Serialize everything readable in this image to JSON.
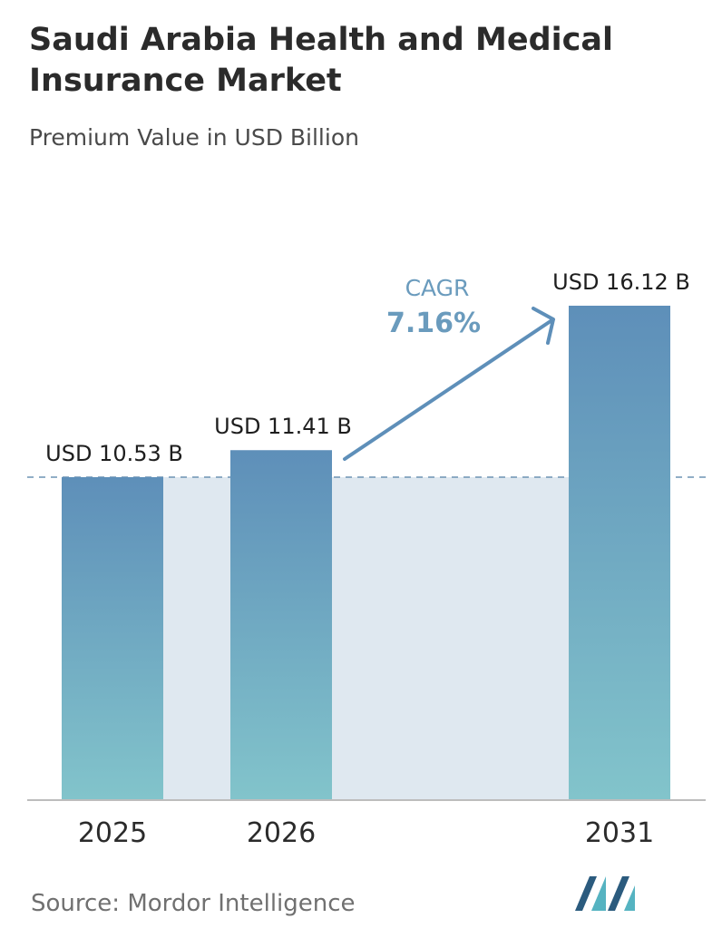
{
  "title": "Saudi Arabia Health and Medical Insurance Market",
  "subtitle": "Premium Value in USD Billion",
  "source": "Source:  Mordor Intelligence",
  "cagr": {
    "label": "CAGR",
    "value": "7.16%"
  },
  "colors": {
    "bar_top": "#5e8fb9",
    "bar_bottom": "#82c4cb",
    "shade": "#dfe8f0",
    "cagr_text": "#6a9bbd",
    "arrow": "#5e8fb9",
    "dashed": "#6d93b3",
    "axis": "#bdbdbd",
    "logo_dark": "#2b5b7e",
    "logo_light": "#55b3c1"
  },
  "chart_data": {
    "type": "bar",
    "categories": [
      "2025",
      "2026",
      "2031"
    ],
    "values": [
      10.53,
      11.41,
      16.12
    ],
    "value_labels": [
      "USD 10.53 B",
      "USD 11.41 B",
      "USD 16.12 B"
    ],
    "title": "Saudi Arabia Health and Medical Insurance Market",
    "subtitle": "Premium Value in USD Billion",
    "ylim": [
      0,
      16.12
    ],
    "grid": false,
    "reference_line": 10.53
  }
}
